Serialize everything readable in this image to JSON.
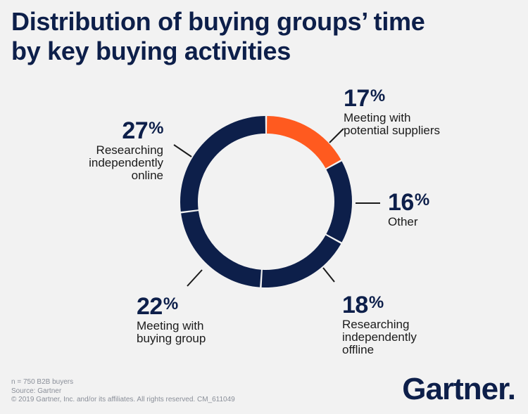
{
  "title": {
    "line1": "Distribution of buying groups’ time",
    "line2": "by key buying activities"
  },
  "colors": {
    "navy": "#0d1f4a",
    "accent": "#ff5a1f",
    "background": "#f2f2f2"
  },
  "chart_data": {
    "type": "pie",
    "donut": true,
    "categories": [
      "Meeting with potential suppliers",
      "Other",
      "Researching independently offline",
      "Meeting with buying group",
      "Researching independently online"
    ],
    "values": [
      17,
      16,
      18,
      22,
      27
    ],
    "unit": "%",
    "highlight": "Meeting with potential suppliers",
    "slices": [
      {
        "pct": "17",
        "desc": [
          "Meeting with",
          "potential suppliers"
        ],
        "color": "#ff5a1f"
      },
      {
        "pct": "16",
        "desc": [
          "Other"
        ],
        "color": "#0d1f4a"
      },
      {
        "pct": "18",
        "desc": [
          "Researching",
          "independently",
          "offline"
        ],
        "color": "#0d1f4a"
      },
      {
        "pct": "22",
        "desc": [
          "Meeting with",
          "buying group"
        ],
        "color": "#0d1f4a"
      },
      {
        "pct": "27",
        "desc": [
          "Researching",
          "independently",
          "online"
        ],
        "color": "#0d1f4a"
      }
    ]
  },
  "footer": {
    "sample": "n = 750 B2B buyers",
    "source": "Source: Gartner",
    "copyright": "© 2019 Gartner, Inc. and/or its affiliates. All rights reserved. CM_611049"
  },
  "brand": {
    "name": "Gartner",
    "mark": "."
  }
}
